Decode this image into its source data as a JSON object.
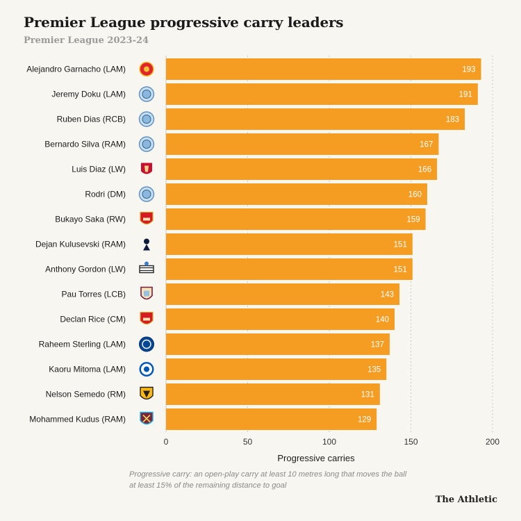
{
  "header": {
    "title": "Premier League progressive carry leaders",
    "subtitle": "Premier League 2023-24"
  },
  "footer": {
    "note_line1": "Progressive carry: an open-play carry at least 10 metres long that moves the ball",
    "note_line2": "at least 15% of the remaining distance to goal",
    "brand": "The Athletic"
  },
  "colors": {
    "bar": "#f59d23",
    "grid": "#c8c8c8",
    "background": "#f7f6f1"
  },
  "chart_data": {
    "type": "bar",
    "orientation": "horizontal",
    "title": "Premier League progressive carry leaders",
    "subtitle": "Premier League 2023-24",
    "xlabel": "Progressive carries",
    "ylabel": "",
    "xlim": [
      0,
      200
    ],
    "xticks": [
      0,
      50,
      100,
      150,
      200
    ],
    "grid": "vertical dotted",
    "categories": [
      "Alejandro Garnacho (LAM)",
      "Jeremy Doku (LAM)",
      "Ruben Dias (RCB)",
      "Bernardo Silva (RAM)",
      "Luis Diaz (LW)",
      "Rodri (DM)",
      "Bukayo Saka (RW)",
      "Dejan Kulusevski (RAM)",
      "Anthony Gordon (LW)",
      "Pau Torres (LCB)",
      "Declan Rice (CM)",
      "Raheem Sterling (LAM)",
      "Kaoru Mitoma (LAM)",
      "Nelson Semedo (RM)",
      "Mohammed Kudus (RAM)"
    ],
    "values": [
      193,
      191,
      183,
      167,
      166,
      160,
      159,
      151,
      151,
      143,
      140,
      137,
      135,
      131,
      129
    ],
    "club_icons": [
      "man-utd-crest-icon",
      "man-city-crest-icon",
      "man-city-crest-icon",
      "man-city-crest-icon",
      "liverpool-crest-icon",
      "man-city-crest-icon",
      "arsenal-crest-icon",
      "tottenham-crest-icon",
      "newcastle-crest-icon",
      "aston-villa-crest-icon",
      "arsenal-crest-icon",
      "chelsea-crest-icon",
      "brighton-crest-icon",
      "wolves-crest-icon",
      "west-ham-crest-icon"
    ]
  }
}
